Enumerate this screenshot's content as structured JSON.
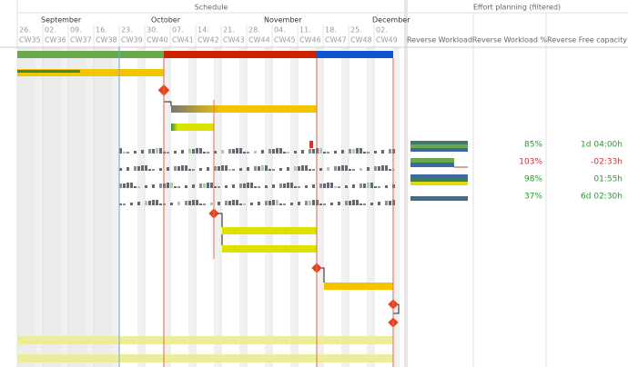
{
  "schedule": {
    "title": "Schedule",
    "months": [
      "September",
      "October",
      "November",
      "December"
    ],
    "days": [
      "26.",
      "02.",
      "09.",
      "16.",
      "23.",
      "30.",
      "07.",
      "14.",
      "21.",
      "28.",
      "04.",
      "11.",
      "18.",
      "25.",
      "02."
    ],
    "weeks": [
      "CW35",
      "CW36",
      "CW37",
      "CW38",
      "CW39",
      "CW40",
      "CW41",
      "CW42",
      "CW43",
      "CW44",
      "CW45",
      "CW46",
      "CW47",
      "CW48",
      "CW49"
    ]
  },
  "effort": {
    "title": "Effort planning (filtered)",
    "columns": [
      "Reverse Workload",
      "Reverse Workload %",
      "Reverse Free capacity"
    ],
    "rows": [
      [
        "85%",
        "1d 04:00h"
      ],
      [
        "103%",
        "-02:33h"
      ],
      [
        "98%",
        "01:55h"
      ],
      [
        "37%",
        "6d 02:30h"
      ]
    ]
  }
}
